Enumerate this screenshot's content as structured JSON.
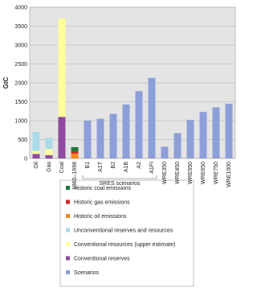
{
  "chart_data": {
    "type": "stacked_bar",
    "y_label": "GtC",
    "annotation": "SRES scenarios",
    "categories": [
      "Oil",
      "Gas",
      "Coal",
      "1860–1998",
      "B1",
      "A1T",
      "B2",
      "A1B",
      "A2",
      "A1FI",
      "WRE350",
      "WRE450",
      "WRE550",
      "WRE650",
      "WRE750",
      "WRE1000"
    ],
    "series": [
      {
        "name": "Historic coal emissions",
        "color": "#1b7c3a",
        "values": [
          null,
          null,
          null,
          120,
          null,
          null,
          null,
          null,
          null,
          null,
          null,
          null,
          null,
          null,
          null,
          null
        ]
      },
      {
        "name": "Historic gas emissions",
        "color": "#d42424",
        "values": [
          null,
          null,
          null,
          50,
          null,
          null,
          null,
          null,
          null,
          null,
          null,
          null,
          null,
          null,
          null,
          null
        ]
      },
      {
        "name": "Historic oil emissions",
        "color": "#f08a24",
        "values": [
          null,
          null,
          null,
          130,
          null,
          null,
          null,
          null,
          null,
          null,
          null,
          null,
          null,
          null,
          null,
          null
        ]
      },
      {
        "name": "Unconventional reserves and resources",
        "color": "#a9dbe8",
        "values": [
          500,
          300,
          null,
          null,
          null,
          null,
          null,
          null,
          null,
          null,
          null,
          null,
          null,
          null,
          null,
          null
        ]
      },
      {
        "name": "Conventional resources (upper estimate)",
        "color": "#ffff99",
        "values": [
          80,
          160,
          2600,
          null,
          null,
          null,
          null,
          null,
          null,
          null,
          null,
          null,
          null,
          null,
          null,
          null
        ]
      },
      {
        "name": "Conventional reserves",
        "color": "#8e4a9e",
        "values": [
          120,
          90,
          1100,
          null,
          null,
          null,
          null,
          null,
          null,
          null,
          null,
          null,
          null,
          null,
          null,
          null
        ]
      },
      {
        "name": "Scenarios",
        "color": "#8d9fd8",
        "values": [
          null,
          null,
          null,
          null,
          1000,
          1050,
          1180,
          1430,
          1780,
          2130,
          310,
          670,
          1020,
          1230,
          1350,
          1450
        ]
      }
    ],
    "ylim": [
      0,
      4000
    ],
    "yticks": [
      0,
      500,
      1000,
      1500,
      2000,
      2500,
      3000,
      3500,
      4000
    ],
    "grid": true
  }
}
